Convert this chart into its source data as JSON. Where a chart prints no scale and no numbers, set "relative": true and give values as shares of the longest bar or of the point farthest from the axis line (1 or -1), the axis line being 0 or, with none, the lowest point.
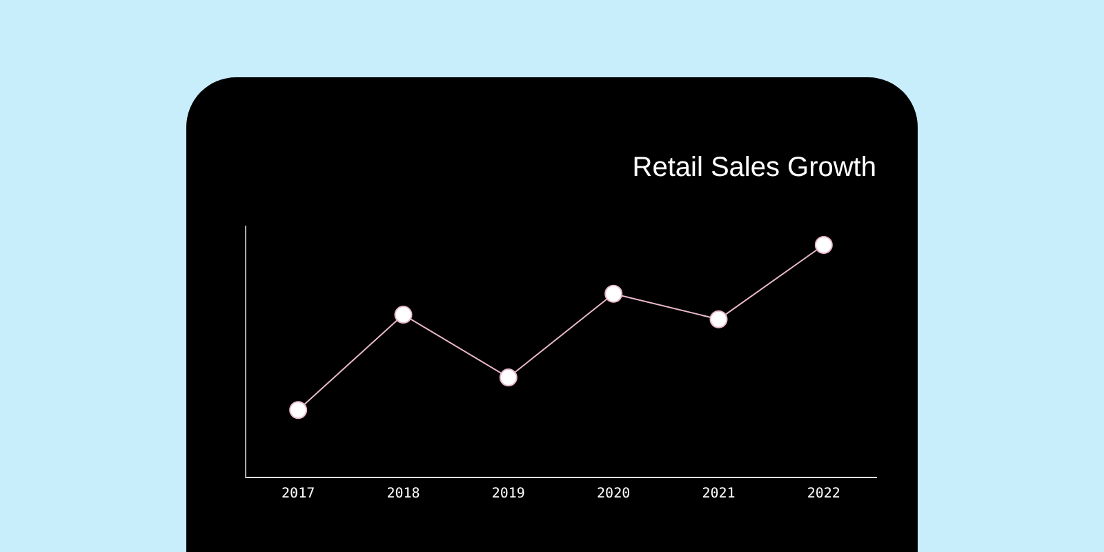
{
  "chart_data": {
    "type": "line",
    "title": "Retail Sales Growth",
    "categories": [
      "2017",
      "2018",
      "2019",
      "2020",
      "2021",
      "2022"
    ],
    "values": [
      0.29,
      0.7,
      0.43,
      0.79,
      0.68,
      1
    ],
    "color": "#e8b8cc",
    "relative": true,
    "legend": false,
    "marker": "circle",
    "line_style": "solid"
  }
}
